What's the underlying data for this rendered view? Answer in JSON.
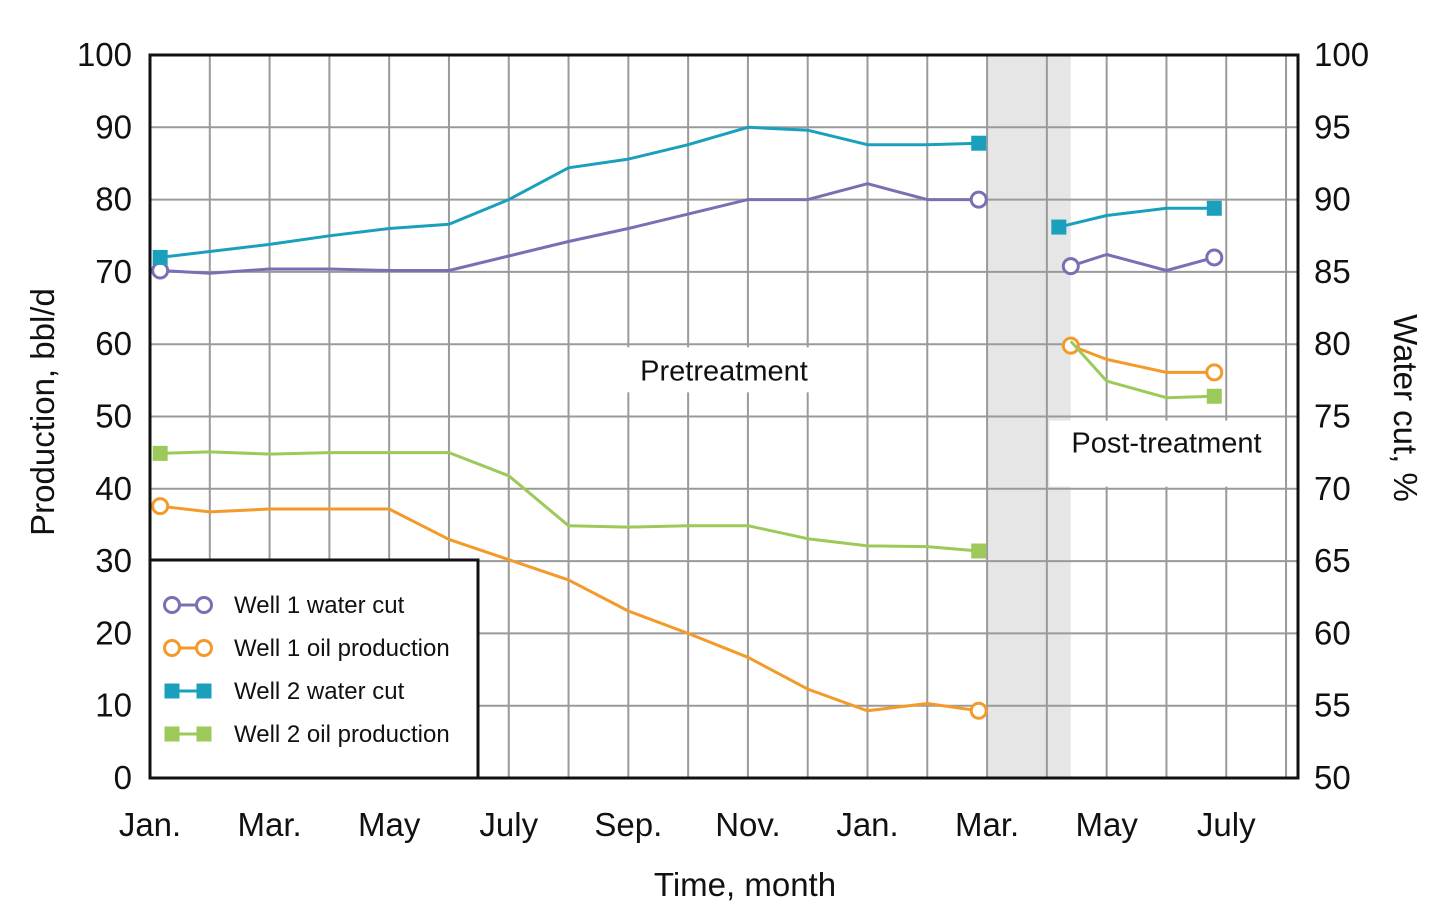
{
  "chart_data": {
    "type": "line",
    "xlabel": "Time, month",
    "ylabel_left": "Production, bbl/d",
    "ylabel_right": "Water cut, %",
    "ylim_left": [
      0,
      100
    ],
    "ylim_right": [
      50,
      100
    ],
    "y_ticks_left": [
      "0",
      "10",
      "20",
      "30",
      "40",
      "50",
      "60",
      "70",
      "80",
      "90",
      "100"
    ],
    "y_ticks_right": [
      "50",
      "55",
      "60",
      "65",
      "70",
      "75",
      "80",
      "85",
      "90",
      "95",
      "100"
    ],
    "x_tick_labels": [
      "Jan.",
      "Mar.",
      "May",
      "July",
      "Sep.",
      "Nov.",
      "Jan.",
      "Mar.",
      "May",
      "July"
    ],
    "x_tick_months": [
      0,
      2,
      4,
      6,
      8,
      10,
      12,
      14,
      16,
      18
    ],
    "x_range_months": [
      0,
      19.2
    ],
    "grid": true,
    "treatment_period_months": [
      14,
      15.4
    ],
    "annotations": [
      {
        "text": "Pretreatment",
        "x_month": 9.6,
        "y_left": 55
      },
      {
        "text": "Post-treatment",
        "x_month": 17,
        "y_left": 45
      }
    ],
    "legend_position": "bottom-left",
    "series": [
      {
        "name": "Well 1 water cut",
        "axis": "right",
        "color": "#7b6fb3",
        "marker": "open-circle",
        "segments": [
          {
            "x": [
              0.17,
              1,
              2,
              3,
              4,
              5,
              6,
              7,
              8,
              9,
              10,
              11,
              12,
              13,
              13.86
            ],
            "y": [
              85.1,
              84.9,
              85.2,
              85.2,
              85.1,
              85.1,
              86.1,
              87.1,
              88.0,
              89.0,
              90.0,
              90.0,
              91.1,
              90.0,
              90.0
            ],
            "markers": [
              0,
              14
            ]
          },
          {
            "x": [
              15.4,
              16,
              17,
              17.8
            ],
            "y": [
              85.4,
              86.2,
              85.1,
              86.0
            ],
            "markers": [
              0,
              3
            ]
          }
        ]
      },
      {
        "name": "Well 1 oil production",
        "axis": "left",
        "color": "#f39a2b",
        "marker": "open-circle",
        "segments": [
          {
            "x": [
              0.17,
              1,
              2,
              3,
              4,
              5,
              6,
              7,
              8,
              9,
              10,
              11,
              12,
              13,
              13.86
            ],
            "y": [
              37.6,
              36.8,
              37.2,
              37.2,
              37.2,
              33.0,
              30.2,
              27.4,
              23.1,
              20.0,
              16.7,
              12.3,
              9.3,
              10.3,
              9.3
            ],
            "markers": [
              0,
              14
            ]
          },
          {
            "x": [
              15.4,
              16,
              17,
              17.8
            ],
            "y": [
              59.8,
              57.9,
              56.1,
              56.1
            ],
            "markers": [
              0,
              3
            ]
          }
        ]
      },
      {
        "name": "Well 2 water cut",
        "axis": "right",
        "color": "#1aa0bd",
        "marker": "filled-square",
        "segments": [
          {
            "x": [
              0.17,
              2,
              3,
              4,
              5,
              6,
              7,
              8,
              9,
              10,
              11,
              12,
              13,
              13.86
            ],
            "y": [
              86.0,
              86.9,
              87.5,
              88.0,
              88.3,
              90.0,
              92.2,
              92.8,
              93.8,
              95.0,
              94.8,
              93.8,
              93.8,
              93.9
            ],
            "markers": [
              0,
              13
            ]
          },
          {
            "x": [
              15.2,
              16,
              17,
              17.8
            ],
            "y": [
              88.1,
              88.9,
              89.4,
              89.4
            ],
            "markers": [
              0,
              3
            ]
          }
        ]
      },
      {
        "name": "Well 2 oil production",
        "axis": "left",
        "color": "#9cc95a",
        "marker": "filled-square",
        "segments": [
          {
            "x": [
              0.17,
              1,
              2,
              3,
              4,
              5,
              6,
              7,
              8,
              9,
              10,
              11,
              12,
              13,
              13.86
            ],
            "y": [
              44.9,
              45.1,
              44.8,
              45.0,
              45.0,
              45.0,
              41.8,
              34.9,
              34.7,
              34.9,
              34.9,
              33.1,
              32.1,
              32.0,
              31.4
            ],
            "markers": [
              0,
              14
            ]
          },
          {
            "x": [
              15.4,
              16,
              17,
              17.8
            ],
            "y": [
              60.4,
              54.9,
              52.6,
              52.8
            ],
            "markers": [
              3
            ]
          }
        ]
      }
    ]
  },
  "colors": {
    "background": "#ffffff",
    "grid": "#9a9a9a",
    "frame": "#111111",
    "treatment_band": "#e6e6e6"
  }
}
